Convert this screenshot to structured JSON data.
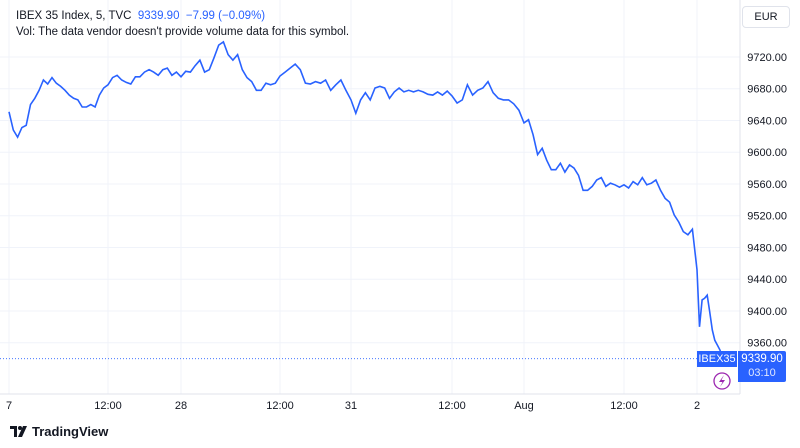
{
  "legend": {
    "symbol": "IBEX 35 Index, 5, TVC",
    "last": "9339.90",
    "change": "−7.99 (−0.09%)",
    "volume_note": "Vol: The data vendor doesn't provide volume data for this symbol."
  },
  "currency_button": "EUR",
  "last_price_tag": {
    "symbol": "IBEX35",
    "price": "9339.90",
    "countdown": "03:10"
  },
  "brand": "TradingView",
  "colors": {
    "line": "#2962ff",
    "alert_icon": "#9c27b0",
    "grid": "#f0f3fa"
  },
  "chart_data": {
    "type": "line",
    "title": "IBEX 35 Index, 5, TVC",
    "ylim": [
      9320,
      9750
    ],
    "y_ticks": [
      "9720.00",
      "9680.00",
      "9640.00",
      "9600.00",
      "9560.00",
      "9520.00",
      "9480.00",
      "9440.00",
      "9400.00",
      "9360.00"
    ],
    "x_ticks": [
      {
        "label": "7",
        "index": 0
      },
      {
        "label": "12:00",
        "index": 23
      },
      {
        "label": "28",
        "index": 39
      },
      {
        "label": "12:00",
        "index": 60
      },
      {
        "label": "31",
        "index": 74
      },
      {
        "label": "12:00",
        "index": 95
      },
      {
        "label": "Aug",
        "index": 109
      },
      {
        "label": "12:00",
        "index": 131
      },
      {
        "label": "2",
        "index": 147
      }
    ],
    "grid": true,
    "series": [
      {
        "values": [
          9651,
          9628,
          9619,
          9631,
          9634,
          9660,
          9668,
          9678,
          9691,
          9686,
          9694,
          9687,
          9683,
          9678,
          9672,
          9668,
          9666,
          9657,
          9657,
          9660,
          9657,
          9672,
          9681,
          9685,
          9694,
          9697,
          9691,
          9688,
          9686,
          9695,
          9695,
          9701,
          9704,
          9701,
          9697,
          9704,
          9706,
          9697,
          9701,
          9695,
          9702,
          9701,
          9709,
          9716,
          9701,
          9704,
          9719,
          9735,
          9739,
          9723,
          9716,
          9723,
          9704,
          9694,
          9689,
          9678,
          9678,
          9687,
          9685,
          9687,
          9696,
          9701,
          9706,
          9711,
          9704,
          9687,
          9686,
          9689,
          9687,
          9691,
          9678,
          9685,
          9691,
          9678,
          9666,
          9649,
          9666,
          9675,
          9666,
          9681,
          9683,
          9681,
          9668,
          9676,
          9681,
          9676,
          9678,
          9676,
          9678,
          9676,
          9673,
          9672,
          9676,
          9672,
          9677,
          9671,
          9662,
          9666,
          9685,
          9672,
          9678,
          9681,
          9689,
          9675,
          9668,
          9666,
          9666,
          9661,
          9653,
          9637,
          9641,
          9622,
          9597,
          9605,
          9590,
          9578,
          9578,
          9586,
          9575,
          9584,
          9580,
          9571,
          9552,
          9552,
          9557,
          9565,
          9568,
          9557,
          9561,
          9559,
          9556,
          9559,
          9555,
          9563,
          9559,
          9568,
          9559,
          9561,
          9565,
          9552,
          9542,
          9537,
          9521,
          9512,
          9500,
          9496,
          9503,
          9452,
          9380,
          9414,
          9416,
          9420,
          9399,
          9376,
          9363,
          9357,
          9351,
          9341,
          9339.9
        ]
      }
    ]
  }
}
